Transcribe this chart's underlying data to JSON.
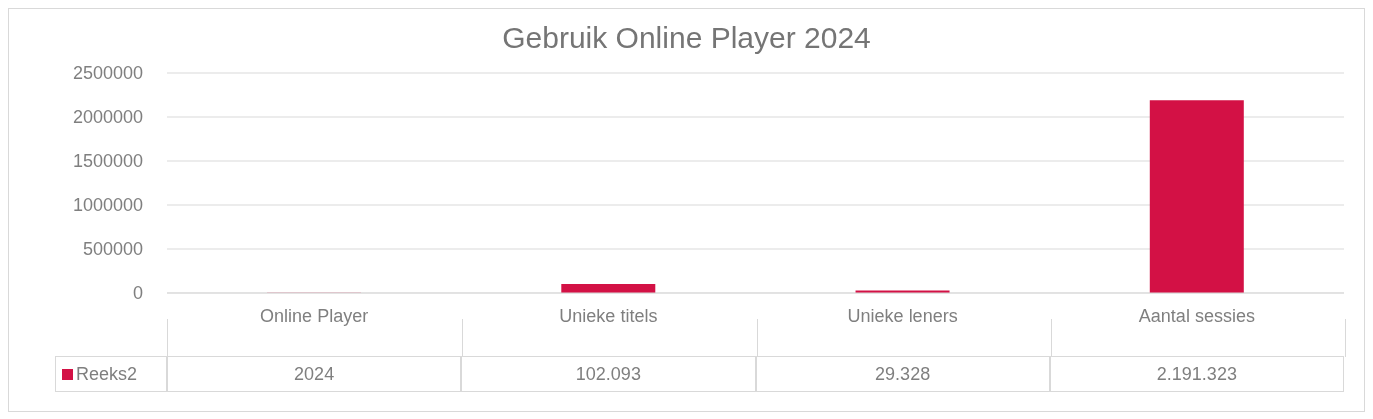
{
  "chart_data": {
    "type": "bar",
    "title": "Gebruik Online Player 2024",
    "categories": [
      "Online Player",
      "Unieke titels",
      "Unieke leners",
      "Aantal sessies"
    ],
    "series": [
      {
        "name": "Reeks2",
        "color": "#d31145",
        "values": [
          2024,
          102093,
          29328,
          2191323
        ],
        "value_labels": [
          "2024",
          "102.093",
          "29.328",
          "2.191.323"
        ]
      }
    ],
    "ylim": [
      0,
      2500000
    ],
    "yticks": [
      0,
      500000,
      1000000,
      1500000,
      2000000,
      2500000
    ],
    "grid": "y",
    "legend": "bottom"
  }
}
